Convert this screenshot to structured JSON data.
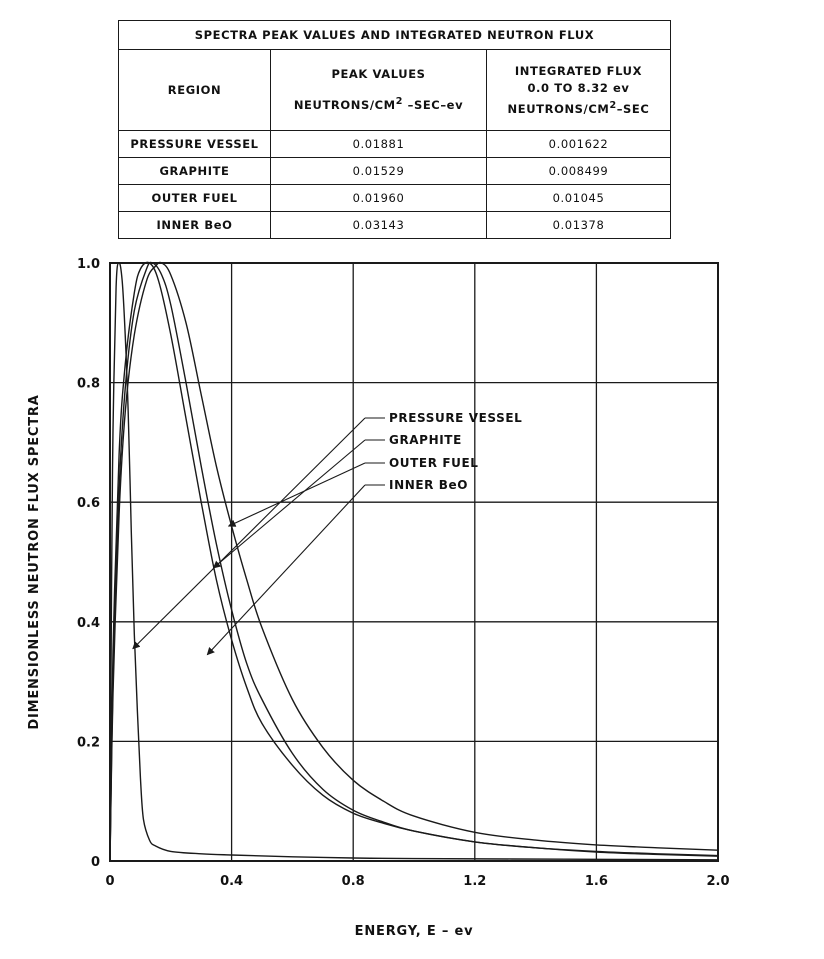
{
  "table": {
    "title": "SPECTRA PEAK VALUES AND INTEGRATED NEUTRON FLUX",
    "headers": {
      "region": "REGION",
      "peak_line1": "PEAK VALUES",
      "peak_line2_main": "NEUTRONS/CM",
      "peak_line2_sup": "2",
      "peak_line2_tail": " –SEC–ev",
      "flux_line1": "INTEGRATED FLUX",
      "flux_line2": "0.0 TO 8.32 ev",
      "flux_line3_main": "NEUTRONS/CM",
      "flux_line3_sup": "2",
      "flux_line3_tail": "–SEC"
    },
    "rows": [
      {
        "region": "PRESSURE VESSEL",
        "peak": "0.01881",
        "flux": "0.001622"
      },
      {
        "region": "GRAPHITE",
        "peak": "0.01529",
        "flux": "0.008499"
      },
      {
        "region": "OUTER FUEL",
        "peak": "0.01960",
        "flux": "0.01045"
      },
      {
        "region": "INNER BeO",
        "peak": "0.03143",
        "flux": "0.01378"
      }
    ]
  },
  "chart_data": {
    "type": "line",
    "title": "",
    "xlabel": "ENERGY, E – ev",
    "ylabel": "DIMENSIONLESS NEUTRON FLUX SPECTRA",
    "xlim": [
      0,
      2.0
    ],
    "ylim": [
      0,
      1.0
    ],
    "x_ticks": [
      "0",
      "0.4",
      "0.8",
      "1.2",
      "1.6",
      "2.0"
    ],
    "y_ticks": [
      "0",
      "0.2",
      "0.4",
      "0.6",
      "0.8",
      "1.0"
    ],
    "grid": true,
    "legend_position": "center-right",
    "series": [
      {
        "name": "PRESSURE VESSEL",
        "x": [
          0,
          0.005,
          0.01,
          0.02,
          0.03,
          0.04,
          0.05,
          0.06,
          0.07,
          0.08,
          0.09,
          0.1,
          0.11,
          0.13,
          0.15,
          0.2,
          0.3,
          0.4,
          0.6,
          0.8,
          1.0,
          1.5,
          2.0
        ],
        "y": [
          0,
          0.45,
          0.72,
          0.96,
          1.0,
          0.97,
          0.88,
          0.75,
          0.55,
          0.38,
          0.25,
          0.14,
          0.07,
          0.035,
          0.025,
          0.016,
          0.012,
          0.01,
          0.007,
          0.005,
          0.004,
          0.003,
          0.002
        ]
      },
      {
        "name": "GRAPHITE",
        "x": [
          0,
          0.01,
          0.03,
          0.05,
          0.08,
          0.1,
          0.13,
          0.16,
          0.2,
          0.25,
          0.3,
          0.35,
          0.4,
          0.45,
          0.5,
          0.6,
          0.7,
          0.8,
          0.9,
          1.0,
          1.2,
          1.4,
          1.6,
          1.8,
          2.0
        ],
        "y": [
          0,
          0.35,
          0.68,
          0.83,
          0.95,
          0.99,
          1.0,
          0.97,
          0.88,
          0.74,
          0.6,
          0.47,
          0.37,
          0.29,
          0.23,
          0.16,
          0.11,
          0.08,
          0.063,
          0.05,
          0.032,
          0.022,
          0.015,
          0.011,
          0.008
        ]
      },
      {
        "name": "OUTER FUEL",
        "x": [
          0,
          0.01,
          0.03,
          0.05,
          0.08,
          0.12,
          0.14,
          0.17,
          0.2,
          0.25,
          0.3,
          0.35,
          0.4,
          0.45,
          0.5,
          0.6,
          0.7,
          0.8,
          0.9,
          1.0,
          1.2,
          1.4,
          1.6,
          1.8,
          2.0
        ],
        "y": [
          0,
          0.3,
          0.62,
          0.79,
          0.92,
          0.99,
          1.0,
          0.98,
          0.93,
          0.8,
          0.66,
          0.53,
          0.42,
          0.33,
          0.27,
          0.18,
          0.12,
          0.085,
          0.065,
          0.05,
          0.032,
          0.022,
          0.016,
          0.012,
          0.009
        ]
      },
      {
        "name": "INNER BeO",
        "x": [
          0,
          0.01,
          0.03,
          0.05,
          0.08,
          0.12,
          0.15,
          0.17,
          0.2,
          0.25,
          0.3,
          0.35,
          0.4,
          0.45,
          0.5,
          0.6,
          0.7,
          0.8,
          0.9,
          1.0,
          1.2,
          1.4,
          1.6,
          1.8,
          2.0
        ],
        "y": [
          0,
          0.28,
          0.58,
          0.75,
          0.88,
          0.97,
          0.995,
          1.0,
          0.98,
          0.9,
          0.78,
          0.66,
          0.56,
          0.47,
          0.39,
          0.27,
          0.19,
          0.135,
          0.1,
          0.075,
          0.048,
          0.035,
          0.027,
          0.022,
          0.018
        ]
      }
    ]
  }
}
